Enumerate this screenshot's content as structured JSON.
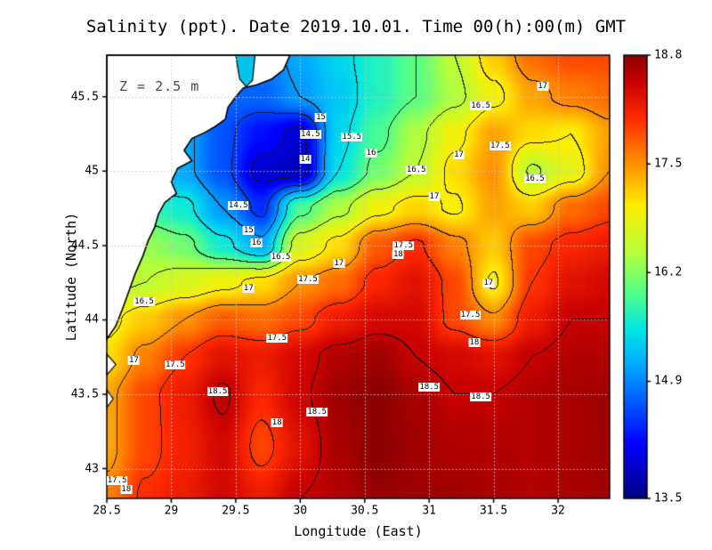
{
  "title": "Salinity (ppt). Date 2019.10.01. Time 00(h):00(m) GMT",
  "depth_annotation": "Z = 2.5 m",
  "axes": {
    "xlabel": "Longitude (East)",
    "ylabel": "Latitude (North)",
    "xticks": [
      {
        "label": "28.5",
        "value": 28.5
      },
      {
        "label": "29",
        "value": 29
      },
      {
        "label": "29.5",
        "value": 29.5
      },
      {
        "label": "30",
        "value": 30
      },
      {
        "label": "30.5",
        "value": 30.5
      },
      {
        "label": "31",
        "value": 31
      },
      {
        "label": "31.5",
        "value": 31.5
      },
      {
        "label": "32",
        "value": 32
      }
    ],
    "yticks": [
      {
        "label": "43",
        "value": 43
      },
      {
        "label": "43.5",
        "value": 43.5
      },
      {
        "label": "44",
        "value": 44
      },
      {
        "label": "44.5",
        "value": 44.5
      },
      {
        "label": "45",
        "value": 45
      },
      {
        "label": "45.5",
        "value": 45.5
      }
    ]
  },
  "colorbar": {
    "min": 13.5,
    "max": 18.8,
    "ticks": [
      {
        "label": "18.8",
        "value": 18.8
      },
      {
        "label": "17.5",
        "value": 17.5
      },
      {
        "label": "16.2",
        "value": 16.2
      },
      {
        "label": "14.9",
        "value": 14.9
      },
      {
        "label": "13.5",
        "value": 13.5
      }
    ]
  },
  "colors": {
    "land": "#ffffff",
    "coastline": "#000000",
    "estuary_water": "#00c4ea",
    "grid": "#c9c9c9",
    "contour": "#141414",
    "colormap": [
      {
        "t": 0.0,
        "c": "#000084"
      },
      {
        "t": 0.12,
        "c": "#0000ff"
      },
      {
        "t": 0.3,
        "c": "#00aaff"
      },
      {
        "t": 0.38,
        "c": "#00e6e6"
      },
      {
        "t": 0.46,
        "c": "#50ff8c"
      },
      {
        "t": 0.55,
        "c": "#b4ff3c"
      },
      {
        "t": 0.66,
        "c": "#ffee00"
      },
      {
        "t": 0.76,
        "c": "#ff8c00"
      },
      {
        "t": 0.86,
        "c": "#ff2800"
      },
      {
        "t": 0.94,
        "c": "#c80000"
      },
      {
        "t": 1.0,
        "c": "#8b0000"
      }
    ]
  },
  "chart_data": {
    "type": "heatmap",
    "quantity": "Salinity",
    "units": "ppt",
    "x_range": [
      28.5,
      32.4
    ],
    "y_range": [
      42.8,
      45.78
    ],
    "value_range": [
      13.5,
      18.8
    ],
    "contour_interval": 0.5,
    "grid_lon": [
      28.5,
      28.8,
      29.1,
      29.4,
      29.7,
      30.0,
      30.3,
      30.6,
      30.9,
      31.2,
      31.5,
      31.8,
      32.1,
      32.4
    ],
    "grid_lat": [
      45.78,
      45.5,
      45.25,
      45.0,
      44.75,
      44.5,
      44.25,
      44.0,
      43.75,
      43.5,
      43.15,
      42.8
    ],
    "salinity": [
      [
        15.0,
        15.0,
        15.0,
        14.9,
        14.8,
        15.1,
        15.4,
        15.7,
        16.0,
        16.5,
        17.2,
        17.7,
        17.9,
        17.9
      ],
      [
        15.0,
        15.0,
        14.9,
        14.7,
        14.7,
        15.0,
        15.3,
        15.7,
        16.0,
        16.4,
        16.9,
        17.4,
        17.6,
        17.7
      ],
      [
        15.2,
        15.2,
        15.1,
        14.6,
        14.2,
        13.9,
        15.4,
        15.9,
        16.4,
        16.9,
        17.4,
        17.1,
        17.0,
        17.4
      ],
      [
        15.4,
        15.3,
        15.1,
        14.6,
        13.9,
        13.8,
        15.5,
        16.1,
        16.5,
        17.1,
        17.5,
        16.45,
        16.8,
        17.5
      ],
      [
        16.1,
        15.8,
        15.6,
        15.0,
        14.4,
        15.9,
        16.4,
        16.9,
        17.15,
        16.95,
        17.4,
        17.2,
        17.7,
        17.9
      ],
      [
        16.4,
        16.3,
        16.1,
        15.6,
        15.1,
        16.7,
        17.1,
        17.8,
        18.05,
        17.6,
        17.2,
        17.9,
        18.1,
        18.2
      ],
      [
        16.4,
        16.5,
        16.7,
        16.9,
        17.1,
        17.5,
        17.7,
        18.1,
        18.3,
        17.9,
        16.95,
        18.0,
        18.3,
        18.4
      ],
      [
        16.9,
        17.2,
        17.5,
        17.8,
        17.7,
        17.9,
        18.2,
        18.4,
        18.4,
        17.9,
        17.55,
        18.2,
        18.5,
        18.5
      ],
      [
        17.1,
        17.6,
        18.0,
        18.3,
        18.2,
        18.4,
        18.6,
        18.7,
        18.5,
        18.4,
        18.3,
        18.5,
        18.6,
        18.6
      ],
      [
        17.4,
        17.9,
        18.2,
        18.55,
        18.1,
        18.45,
        18.7,
        18.8,
        18.65,
        18.5,
        18.5,
        18.6,
        18.65,
        18.7
      ],
      [
        17.4,
        17.9,
        18.15,
        18.4,
        17.9,
        18.3,
        18.65,
        18.8,
        18.7,
        18.6,
        18.6,
        18.6,
        18.65,
        18.7
      ],
      [
        17.6,
        18.05,
        18.2,
        18.4,
        18.2,
        18.5,
        18.6,
        18.75,
        18.7,
        18.7,
        18.65,
        18.6,
        18.65,
        18.7
      ]
    ],
    "contour_labels": [
      {
        "v": "15",
        "lon": 30.16,
        "lat": 45.36
      },
      {
        "v": "14.5",
        "lon": 30.08,
        "lat": 45.25
      },
      {
        "v": "15.5",
        "lon": 30.4,
        "lat": 45.23
      },
      {
        "v": "16.5",
        "lon": 31.4,
        "lat": 45.44
      },
      {
        "v": "17",
        "lon": 31.88,
        "lat": 45.57
      },
      {
        "v": "14",
        "lon": 30.04,
        "lat": 45.08
      },
      {
        "v": "16",
        "lon": 30.55,
        "lat": 45.12
      },
      {
        "v": "17",
        "lon": 31.23,
        "lat": 45.11
      },
      {
        "v": "17.5",
        "lon": 31.55,
        "lat": 45.17
      },
      {
        "v": "16.5",
        "lon": 30.9,
        "lat": 45.01
      },
      {
        "v": "16.5",
        "lon": 31.82,
        "lat": 44.95
      },
      {
        "v": "14.5",
        "lon": 29.52,
        "lat": 44.77
      },
      {
        "v": "17",
        "lon": 31.04,
        "lat": 44.83
      },
      {
        "v": "15",
        "lon": 29.6,
        "lat": 44.6
      },
      {
        "v": "16",
        "lon": 29.66,
        "lat": 44.52
      },
      {
        "v": "16.5",
        "lon": 29.85,
        "lat": 44.42
      },
      {
        "v": "17.5",
        "lon": 30.8,
        "lat": 44.5
      },
      {
        "v": "18",
        "lon": 30.76,
        "lat": 44.44
      },
      {
        "v": "17",
        "lon": 30.3,
        "lat": 44.38
      },
      {
        "v": "17",
        "lon": 29.6,
        "lat": 44.21
      },
      {
        "v": "17.5",
        "lon": 30.06,
        "lat": 44.27
      },
      {
        "v": "17",
        "lon": 31.46,
        "lat": 44.25
      },
      {
        "v": "16.5",
        "lon": 28.79,
        "lat": 44.12
      },
      {
        "v": "17.5",
        "lon": 31.32,
        "lat": 44.03
      },
      {
        "v": "17.5",
        "lon": 29.82,
        "lat": 43.88
      },
      {
        "v": "18",
        "lon": 31.35,
        "lat": 43.85
      },
      {
        "v": "17",
        "lon": 28.71,
        "lat": 43.73
      },
      {
        "v": "17.5",
        "lon": 29.03,
        "lat": 43.7
      },
      {
        "v": "18.5",
        "lon": 29.36,
        "lat": 43.52
      },
      {
        "v": "18.5",
        "lon": 31.0,
        "lat": 43.55
      },
      {
        "v": "18.5",
        "lon": 31.4,
        "lat": 43.48
      },
      {
        "v": "18.5",
        "lon": 30.13,
        "lat": 43.38
      },
      {
        "v": "18",
        "lon": 29.82,
        "lat": 43.31
      },
      {
        "v": "17.5",
        "lon": 28.58,
        "lat": 42.92
      },
      {
        "v": "18",
        "lon": 28.65,
        "lat": 42.86
      }
    ],
    "coastline": [
      [
        29.92,
        45.78
      ],
      [
        29.87,
        45.68
      ],
      [
        29.78,
        45.62
      ],
      [
        29.66,
        45.58
      ],
      [
        29.56,
        45.56
      ],
      [
        29.5,
        45.5
      ],
      [
        29.44,
        45.43
      ],
      [
        29.42,
        45.35
      ],
      [
        29.34,
        45.3
      ],
      [
        29.26,
        45.26
      ],
      [
        29.16,
        45.22
      ],
      [
        29.1,
        45.14
      ],
      [
        29.16,
        45.07
      ],
      [
        29.05,
        45.02
      ],
      [
        29.0,
        44.93
      ],
      [
        29.04,
        44.85
      ],
      [
        28.95,
        44.79
      ],
      [
        28.9,
        44.71
      ],
      [
        28.87,
        44.62
      ],
      [
        28.82,
        44.53
      ],
      [
        28.78,
        44.43
      ],
      [
        28.72,
        44.31
      ],
      [
        28.67,
        44.19
      ],
      [
        28.62,
        44.07
      ],
      [
        28.57,
        43.96
      ],
      [
        28.5,
        43.87
      ]
    ],
    "coast_notches": [
      [
        [
          28.5,
          43.77
        ],
        [
          28.57,
          43.7
        ],
        [
          28.5,
          43.63
        ]
      ],
      [
        [
          28.5,
          43.53
        ],
        [
          28.55,
          43.47
        ],
        [
          28.5,
          43.41
        ]
      ]
    ],
    "estuary": [
      [
        29.5,
        45.78
      ],
      [
        29.53,
        45.62
      ],
      [
        29.58,
        45.57
      ],
      [
        29.63,
        45.61
      ],
      [
        29.65,
        45.78
      ]
    ]
  }
}
